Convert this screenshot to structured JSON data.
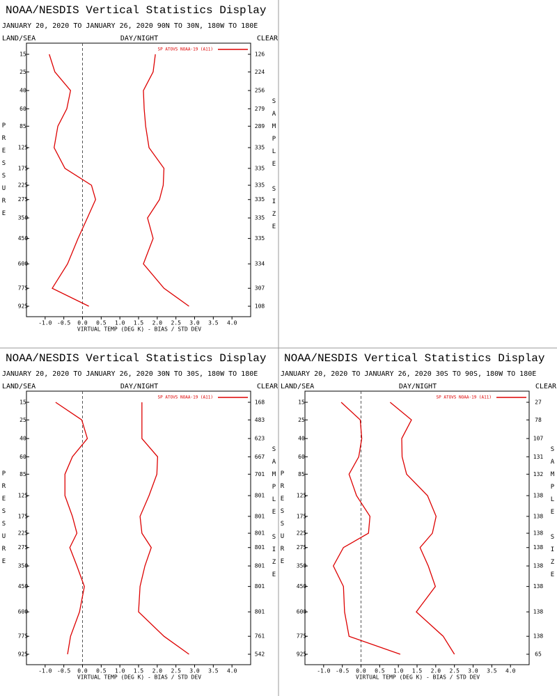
{
  "chart_data": [
    {
      "type": "line",
      "title": "NOAA/NESDIS Vertical Statistics Display",
      "subtitle": "JANUARY 20, 2020 TO JANUARY 26, 2020 90N TO 30N, 180W TO 180E",
      "left_label": "LAND/SEA",
      "center_label": "DAY/NIGHT",
      "right_label": "CLEAR",
      "ylabel": "PRESSURE",
      "y2label": "SAMPLE SIZE",
      "xlabel": "VIRTUAL TEMP (DEG K) - BIAS / STD DEV",
      "yticks": [
        15,
        25,
        40,
        60,
        85,
        125,
        175,
        225,
        275,
        350,
        450,
        600,
        775,
        925
      ],
      "sample_size": [
        126,
        224,
        256,
        279,
        289,
        335,
        335,
        335,
        335,
        335,
        335,
        334,
        307,
        108
      ],
      "xlim": [
        -1.5,
        4.5
      ],
      "xticks": [
        {
          "value": -1,
          "label": "-1.0"
        },
        {
          "value": -0.5,
          "label": "-0.5"
        },
        {
          "value": 0,
          "label": "0.0"
        },
        {
          "value": 0.5,
          "label": "0.5"
        },
        {
          "value": 1,
          "label": "1.0"
        },
        {
          "value": 1.5,
          "label": "1.5"
        },
        {
          "value": 2,
          "label": "2.0"
        },
        {
          "value": 2.5,
          "label": "2.5"
        },
        {
          "value": 3,
          "label": "3.0"
        },
        {
          "value": 3.5,
          "label": "3.5"
        },
        {
          "value": 4,
          "label": "4.0"
        }
      ],
      "series": [
        {
          "name": "SP ATOVS NOAA-19 (A11)",
          "color": "#dd0000",
          "bias": [
            -0.89,
            -0.74,
            -0.32,
            -0.42,
            -0.66,
            -0.76,
            -0.47,
            0.24,
            0.35,
            0.13,
            -0.12,
            -0.4,
            -0.81,
            0.17
          ],
          "std_dev": [
            1.95,
            1.89,
            1.63,
            1.65,
            1.69,
            1.78,
            2.18,
            2.16,
            2.06,
            1.74,
            1.89,
            1.63,
            2.18,
            2.85
          ]
        }
      ]
    },
    {
      "type": "line",
      "title": "NOAA/NESDIS Vertical Statistics Display",
      "subtitle": "JANUARY 20, 2020 TO JANUARY 26, 2020 30N TO 30S, 180W TO 180E",
      "left_label": "LAND/SEA",
      "center_label": "DAY/NIGHT",
      "right_label": "CLEAR",
      "ylabel": "PRESSURE",
      "y2label": "SAMPLE SIZE",
      "xlabel": "VIRTUAL TEMP (DEG K) - BIAS / STD DEV",
      "yticks": [
        15,
        25,
        40,
        60,
        85,
        125,
        175,
        225,
        275,
        350,
        450,
        600,
        775,
        925
      ],
      "sample_size": [
        168,
        483,
        623,
        667,
        701,
        801,
        801,
        801,
        801,
        801,
        801,
        801,
        761,
        542
      ],
      "xlim": [
        -1.5,
        4.5
      ],
      "xticks": [
        {
          "value": -1,
          "label": "-1.0"
        },
        {
          "value": -0.5,
          "label": "-0.5"
        },
        {
          "value": 0,
          "label": "0.0"
        },
        {
          "value": 0.5,
          "label": "0.5"
        },
        {
          "value": 1,
          "label": "1.0"
        },
        {
          "value": 1.5,
          "label": "1.5"
        },
        {
          "value": 2,
          "label": "2.0"
        },
        {
          "value": 2.5,
          "label": "2.5"
        },
        {
          "value": 3,
          "label": "3.0"
        },
        {
          "value": 3.5,
          "label": "3.5"
        },
        {
          "value": 4,
          "label": "4.0"
        }
      ],
      "series": [
        {
          "name": "SP ATOVS NOAA-19 (A11)",
          "color": "#dd0000",
          "bias": [
            -0.72,
            -0.02,
            0.13,
            -0.27,
            -0.47,
            -0.47,
            -0.27,
            -0.15,
            -0.34,
            -0.15,
            0.05,
            -0.08,
            -0.32,
            -0.4
          ],
          "std_dev": [
            1.59,
            1.59,
            1.59,
            2.01,
            1.99,
            1.78,
            1.54,
            1.59,
            1.84,
            1.67,
            1.54,
            1.5,
            2.18,
            2.85
          ]
        }
      ]
    },
    {
      "type": "line",
      "title": "NOAA/NESDIS Vertical Statistics Display",
      "subtitle": "JANUARY 20, 2020 TO JANUARY 26, 2020 30S TO 90S, 180W TO 180E",
      "left_label": "LAND/SEA",
      "center_label": "DAY/NIGHT",
      "right_label": "CLEAR",
      "ylabel": "PRESSURE",
      "y2label": "SAMPLE SIZE",
      "xlabel": "VIRTUAL TEMP (DEG K) - BIAS / STD DEV",
      "yticks": [
        15,
        25,
        40,
        60,
        85,
        125,
        175,
        225,
        275,
        350,
        450,
        600,
        775,
        925
      ],
      "sample_size": [
        27,
        78,
        107,
        131,
        132,
        138,
        138,
        138,
        138,
        138,
        138,
        138,
        138,
        65
      ],
      "xlim": [
        -1.5,
        4.5
      ],
      "xticks": [
        {
          "value": -1,
          "label": "-1.0"
        },
        {
          "value": -0.5,
          "label": "-0.5"
        },
        {
          "value": 0,
          "label": "0.0"
        },
        {
          "value": 0.5,
          "label": "0.5"
        },
        {
          "value": 1,
          "label": "1.0"
        },
        {
          "value": 1.5,
          "label": "1.5"
        },
        {
          "value": 2,
          "label": "2.0"
        },
        {
          "value": 2.5,
          "label": "2.5"
        },
        {
          "value": 3,
          "label": "3.0"
        },
        {
          "value": 3.5,
          "label": "3.5"
        },
        {
          "value": 4,
          "label": "4.0"
        }
      ],
      "series": [
        {
          "name": "SP ATOVS NOAA-19 (A11)",
          "color": "#dd0000",
          "bias": [
            -0.53,
            -0.02,
            0.02,
            -0.06,
            -0.32,
            -0.12,
            0.24,
            0.2,
            -0.47,
            -0.74,
            -0.47,
            -0.44,
            -0.32,
            1.05
          ],
          "std_dev": [
            0.78,
            1.35,
            1.09,
            1.1,
            1.22,
            1.78,
            2.01,
            1.91,
            1.58,
            1.8,
            1.99,
            1.48,
            2.2,
            2.5
          ]
        }
      ]
    }
  ]
}
